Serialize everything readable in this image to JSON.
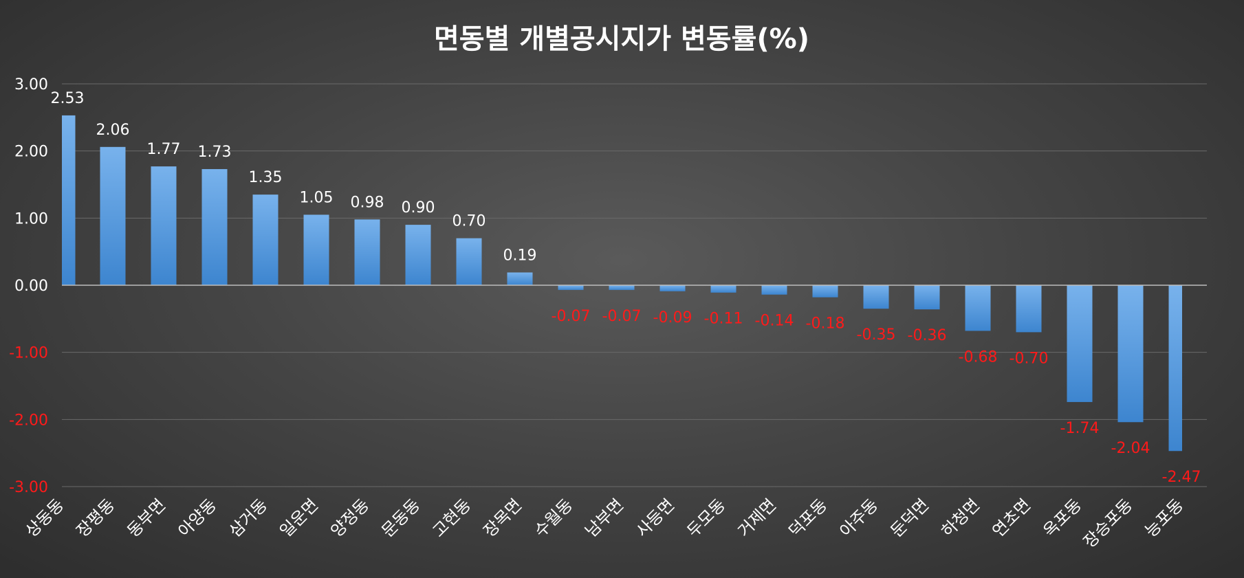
{
  "chart_data": {
    "type": "bar",
    "title": "면동별 개별공시지가 변동률(%)",
    "xlabel": "",
    "ylabel": "",
    "ylim": [
      -3,
      3
    ],
    "yticks": [
      "3.00",
      "2.00",
      "1.00",
      "0.00",
      "-1.00",
      "-2.00",
      "-3.00"
    ],
    "grid": true,
    "legend": "none",
    "categories": [
      "상동동",
      "장평동",
      "동부면",
      "아양동",
      "삼거동",
      "일운면",
      "양정동",
      "문동동",
      "고현동",
      "장목면",
      "수월동",
      "남부면",
      "사등면",
      "두모동",
      "거제면",
      "덕포동",
      "아주동",
      "둔덕면",
      "하청면",
      "연초면",
      "옥포동",
      "장승포동",
      "능포동"
    ],
    "values": [
      2.53,
      2.06,
      1.77,
      1.73,
      1.35,
      1.05,
      0.98,
      0.9,
      0.7,
      0.19,
      -0.07,
      -0.07,
      -0.09,
      -0.11,
      -0.14,
      -0.18,
      -0.35,
      -0.36,
      -0.68,
      -0.7,
      -1.74,
      -2.04,
      -2.47
    ],
    "value_labels": [
      "2.53",
      "2.06",
      "1.77",
      "1.73",
      "1.35",
      "1.05",
      "0.98",
      "0.90",
      "0.70",
      "0.19",
      "-0.07",
      "-0.07",
      "-0.09",
      "-0.11",
      "-0.14",
      "-0.18",
      "-0.35",
      "-0.36",
      "-0.68",
      "-0.70",
      "-1.74",
      "-2.04",
      "-2.47"
    ],
    "colors": {
      "bar_top": "#78b2ec",
      "bar_bottom": "#3d85cf",
      "positive_label": "#ffffff",
      "negative_label": "#ff1a1a"
    }
  }
}
